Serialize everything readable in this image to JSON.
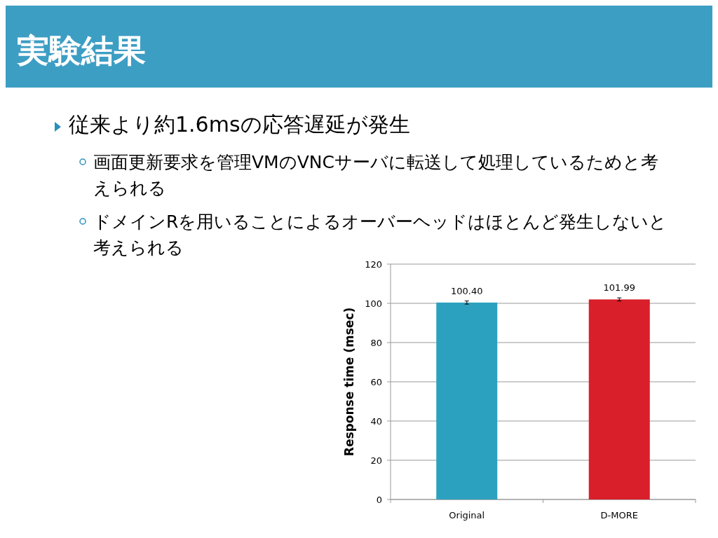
{
  "chart_data": {
    "type": "bar",
    "title": "実験結果",
    "annotations": [
      "従来より約1.6msの応答遅延が発生",
      "画面更新要求を管理VMのVNCサーバに転送して処理しているためと考えられる",
      "ドメインRを用いることによるオーバーヘッドはほとんど発生しないと考えられる"
    ],
    "categories": [
      "Original",
      "D-MORE"
    ],
    "values": [
      100.4,
      101.99
    ],
    "colors": [
      "#2ca1bf",
      "#d91f2a"
    ],
    "errors": [
      0.8,
      0.8
    ],
    "value_labels": [
      "100.40",
      "101.99"
    ],
    "ylabel": "Response time (msec)",
    "ylim": [
      0,
      120
    ],
    "yticks": [
      0,
      20,
      40,
      60,
      80,
      100,
      120
    ],
    "grid": "y"
  }
}
